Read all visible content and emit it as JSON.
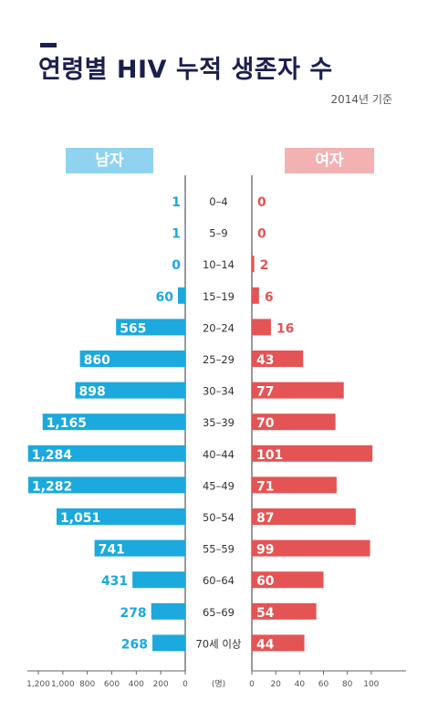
{
  "header": {
    "title": "연령별 HIV 누적 생존자 수",
    "subtitle": "2014년 기준",
    "male_label": "남자",
    "female_label": "여자"
  },
  "colors": {
    "male": "#1ba9de",
    "female": "#e45454",
    "title": "#1b1f4d"
  },
  "chart_data": {
    "type": "bar",
    "categories": [
      "0–4",
      "5–9",
      "10–14",
      "15–19",
      "20–24",
      "25–29",
      "30–34",
      "35–39",
      "40–44",
      "45–49",
      "50–54",
      "55–59",
      "60–64",
      "65–69",
      "70세 이상"
    ],
    "series": [
      {
        "name": "남자",
        "values": [
          1,
          1,
          0,
          60,
          565,
          860,
          898,
          1165,
          1284,
          1282,
          1051,
          741,
          431,
          278,
          268
        ]
      },
      {
        "name": "여자",
        "values": [
          0,
          0,
          2,
          6,
          16,
          43,
          77,
          70,
          101,
          71,
          87,
          99,
          60,
          54,
          44
        ]
      }
    ],
    "male_axis": {
      "ticks": [
        "1,200",
        "1,000",
        "800",
        "600",
        "400",
        "200",
        "0"
      ],
      "tick_values": [
        1200,
        1000,
        800,
        600,
        400,
        200,
        0
      ]
    },
    "female_axis": {
      "ticks": [
        "0",
        "20",
        "40",
        "60",
        "80",
        "100"
      ],
      "tick_values": [
        0,
        20,
        40,
        60,
        80,
        100
      ]
    },
    "center_axis_label": "(명)"
  }
}
